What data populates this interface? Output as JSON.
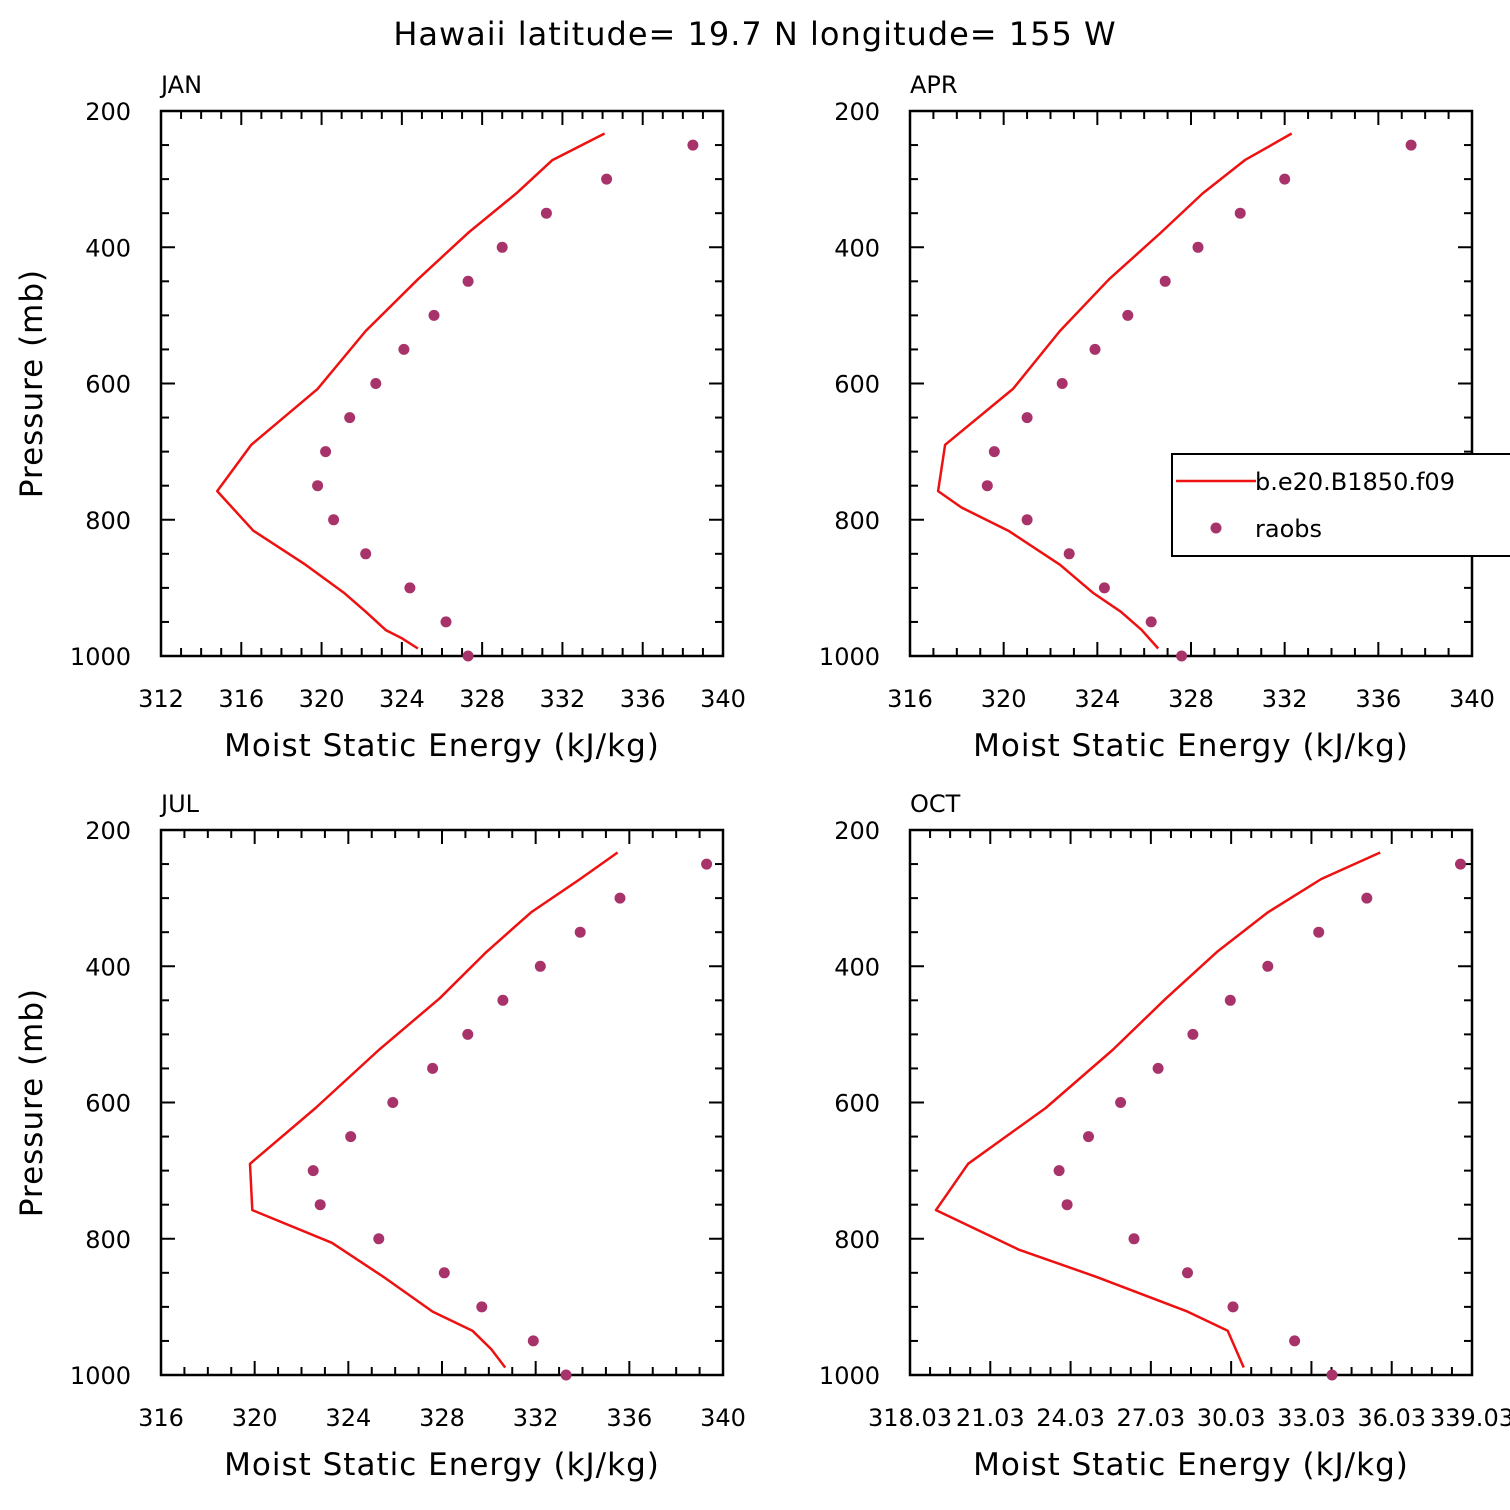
{
  "title": "Hawaii  latitude= 19.7 N longitude= 155 W",
  "colors": {
    "model": "#ee1111",
    "obs": "#a8336a",
    "axes": "#000000",
    "background": "#ffffff"
  },
  "legend": {
    "placement": "right of APR panel, overlapping edge",
    "entries": [
      {
        "label": "b.e20.B1850.f09",
        "style": "line"
      },
      {
        "label": "raobs",
        "style": "marker"
      }
    ]
  },
  "chart_data": [
    {
      "type": "line",
      "panel": "JAN",
      "xlabel": "Moist Static Energy (kJ/kg)",
      "ylabel": "Pressure (mb)",
      "xlim": [
        312,
        340
      ],
      "ylim": [
        1000,
        200
      ],
      "y_inverted": true,
      "xticks": [
        "312",
        "316",
        "320",
        "324",
        "328",
        "332",
        "336",
        "340"
      ],
      "yticks": [
        "200",
        "400",
        "600",
        "800",
        "1000"
      ],
      "series": [
        {
          "name": "b.e20.B1850.f09",
          "style": "line",
          "x": [
            334.1,
            331.5,
            329.7,
            327.3,
            324.8,
            322.2,
            319.8,
            316.5,
            314.8,
            316.6,
            319.2,
            321.1,
            322.2,
            323.2,
            324.0,
            324.8
          ],
          "y": [
            233,
            272,
            321,
            379,
            447,
            523,
            608,
            690,
            758,
            816,
            866,
            907,
            935,
            962,
            974,
            989
          ]
        },
        {
          "name": "raobs",
          "style": "marker",
          "x": [
            338.5,
            334.2,
            331.2,
            329.0,
            327.3,
            325.6,
            324.1,
            322.7,
            321.4,
            320.2,
            319.8,
            320.6,
            322.2,
            324.4,
            326.2,
            327.3
          ],
          "y": [
            250,
            300,
            350,
            400,
            450,
            500,
            550,
            600,
            650,
            700,
            750,
            800,
            850,
            900,
            950,
            1000
          ]
        }
      ]
    },
    {
      "type": "line",
      "panel": "APR",
      "xlabel": "Moist Static Energy (kJ/kg)",
      "ylabel": "Pressure (mb)",
      "xlim": [
        316,
        340
      ],
      "ylim": [
        1000,
        200
      ],
      "y_inverted": true,
      "xticks": [
        "316",
        "320",
        "324",
        "328",
        "332",
        "336",
        "340"
      ],
      "yticks": [
        "200",
        "400",
        "600",
        "800",
        "1000"
      ],
      "series": [
        {
          "name": "b.e20.B1850.f09",
          "style": "line",
          "x": [
            332.3,
            330.3,
            328.5,
            326.7,
            324.5,
            322.4,
            320.4,
            317.5,
            317.2,
            318.2,
            320.2,
            322.4,
            323.8,
            325.0,
            325.9,
            326.6
          ],
          "y": [
            233,
            272,
            321,
            379,
            447,
            523,
            608,
            690,
            758,
            782,
            816,
            866,
            907,
            935,
            962,
            989
          ]
        },
        {
          "name": "raobs",
          "style": "marker",
          "x": [
            337.4,
            332.0,
            330.1,
            328.3,
            326.9,
            325.3,
            323.9,
            322.5,
            321.0,
            319.6,
            319.3,
            321.0,
            322.8,
            324.3,
            326.3,
            327.6
          ],
          "y": [
            250,
            300,
            350,
            400,
            450,
            500,
            550,
            600,
            650,
            700,
            750,
            800,
            850,
            900,
            950,
            1000
          ]
        }
      ]
    },
    {
      "type": "line",
      "panel": "JUL",
      "xlabel": "Moist Static Energy (kJ/kg)",
      "ylabel": "Pressure (mb)",
      "xlim": [
        316,
        340
      ],
      "ylim": [
        1000,
        200
      ],
      "y_inverted": true,
      "xticks": [
        "316",
        "320",
        "324",
        "328",
        "332",
        "336",
        "340"
      ],
      "yticks": [
        "200",
        "400",
        "600",
        "800",
        "1000"
      ],
      "series": [
        {
          "name": "b.e20.B1850.f09",
          "style": "line",
          "x": [
            335.5,
            333.9,
            331.8,
            329.9,
            327.9,
            325.3,
            322.6,
            319.8,
            319.9,
            323.3,
            325.5,
            327.6,
            329.3,
            330.1,
            330.7
          ],
          "y": [
            233,
            272,
            321,
            379,
            447,
            523,
            608,
            690,
            758,
            806,
            856,
            907,
            935,
            962,
            989
          ]
        },
        {
          "name": "raobs",
          "style": "marker",
          "x": [
            339.3,
            335.6,
            333.9,
            332.2,
            330.6,
            329.1,
            327.6,
            325.9,
            324.1,
            322.5,
            322.8,
            325.3,
            328.1,
            329.7,
            331.9,
            333.3
          ],
          "y": [
            250,
            300,
            350,
            400,
            450,
            500,
            550,
            600,
            650,
            700,
            750,
            800,
            850,
            900,
            950,
            1000
          ]
        }
      ]
    },
    {
      "type": "line",
      "panel": "OCT",
      "xlabel": "Moist Static Energy (kJ/kg)",
      "ylabel": "Pressure (mb)",
      "xlim": [
        318.03,
        339.03
      ],
      "ylim": [
        1000,
        200
      ],
      "y_inverted": true,
      "xticks": [
        "318.03",
        "21.03",
        "24.03",
        "27.03",
        "30.03",
        "33.03",
        "36.03",
        "339.03"
      ],
      "yticks": [
        "200",
        "400",
        "600",
        "800",
        "1000"
      ],
      "series": [
        {
          "name": "b.e20.B1850.f09",
          "style": "line",
          "x": [
            335.6,
            333.4,
            331.4,
            329.5,
            327.6,
            325.6,
            323.1,
            320.2,
            319.0,
            322.1,
            325.0,
            328.4,
            329.9,
            330.2,
            330.5
          ],
          "y": [
            233,
            272,
            321,
            379,
            447,
            523,
            608,
            690,
            758,
            816,
            856,
            907,
            935,
            962,
            989
          ]
        },
        {
          "name": "raobs",
          "style": "marker",
          "x": [
            338.6,
            335.1,
            333.3,
            331.4,
            330.0,
            328.6,
            327.3,
            325.9,
            324.7,
            323.6,
            323.9,
            326.4,
            328.4,
            330.1,
            332.4,
            333.8
          ],
          "y": [
            250,
            300,
            350,
            400,
            450,
            500,
            550,
            600,
            650,
            700,
            750,
            800,
            850,
            900,
            950,
            1000
          ]
        }
      ]
    }
  ]
}
